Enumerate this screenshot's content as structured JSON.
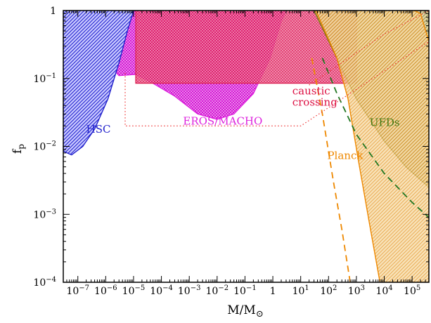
{
  "chart_data": {
    "type": "area",
    "xlabel": "M/M",
    "xlabel_symbol": "⊙",
    "ylabel": "f",
    "ylabel_sub": "p",
    "x_scale": "log",
    "y_scale": "log",
    "xlim": [
      3e-08,
      400000
    ],
    "ylim": [
      0.0001,
      1
    ],
    "x_ticks": [
      {
        "value": 1e-07,
        "base": "10",
        "exp": "−7"
      },
      {
        "value": 1e-06,
        "base": "10",
        "exp": "−6"
      },
      {
        "value": 1e-05,
        "base": "10",
        "exp": "−5"
      },
      {
        "value": 0.0001,
        "base": "10",
        "exp": "−4"
      },
      {
        "value": 0.001,
        "base": "10",
        "exp": "−3"
      },
      {
        "value": 0.01,
        "base": "10",
        "exp": "−2"
      },
      {
        "value": 0.1,
        "base": "10",
        "exp": "−1"
      },
      {
        "value": 1,
        "base": "1",
        "exp": ""
      },
      {
        "value": 10,
        "base": "10",
        "exp": "1"
      },
      {
        "value": 100,
        "base": "10",
        "exp": "2"
      },
      {
        "value": 1000,
        "base": "10",
        "exp": "3"
      },
      {
        "value": 10000,
        "base": "10",
        "exp": "4"
      },
      {
        "value": 100000,
        "base": "10",
        "exp": "5"
      }
    ],
    "y_ticks": [
      {
        "value": 0.0001,
        "base": "10",
        "exp": "−4"
      },
      {
        "value": 0.001,
        "base": "10",
        "exp": "−3"
      },
      {
        "value": 0.01,
        "base": "10",
        "exp": "−2"
      },
      {
        "value": 0.1,
        "base": "10",
        "exp": "−1"
      },
      {
        "value": 1,
        "base": "1",
        "exp": ""
      }
    ],
    "grid": false,
    "regions": [
      {
        "name": "EROS/MACHO",
        "color": "#dd22dd",
        "style": "crosshatch",
        "label": "EROS/MACHO",
        "label_at": [
          0.0006,
          0.021
        ],
        "boundary": [
          [
            3e-08,
            1
          ],
          [
            3e-08,
            0.7
          ],
          [
            2e-07,
            0.45
          ],
          [
            8e-07,
            0.2
          ],
          [
            3e-06,
            0.11
          ],
          [
            1.2e-05,
            0.115
          ],
          [
            5e-05,
            0.085
          ],
          [
            0.0003,
            0.055
          ],
          [
            0.002,
            0.03
          ],
          [
            0.01,
            0.025
          ],
          [
            0.04,
            0.03
          ],
          [
            0.2,
            0.06
          ],
          [
            0.8,
            0.2
          ],
          [
            2,
            0.7
          ],
          [
            3,
            1
          ]
        ]
      },
      {
        "name": "HSC",
        "color": "#2222cc",
        "style": "hatch",
        "label": "HSC",
        "label_at": [
          2e-07,
          0.016
        ],
        "boundary": [
          [
            3e-08,
            1
          ],
          [
            3e-08,
            0.0085
          ],
          [
            6e-08,
            0.0075
          ],
          [
            1.5e-07,
            0.01
          ],
          [
            4e-07,
            0.018
          ],
          [
            1.2e-06,
            0.05
          ],
          [
            3e-06,
            0.17
          ],
          [
            6e-06,
            0.5
          ],
          [
            1e-05,
            1
          ]
        ]
      },
      {
        "name": "caustic crossing",
        "color": "#dd2255",
        "style": "crosshatch",
        "label_lines": [
          "caustic",
          "crossing"
        ],
        "label_at": [
          5,
          0.058
        ],
        "boundary": [
          [
            1.2e-05,
            1
          ],
          [
            1.2e-05,
            0.085
          ],
          [
            1000.0,
            0.085
          ],
          [
            1000.0,
            1
          ]
        ]
      },
      {
        "name": "UFDs",
        "color": "#7a7a10",
        "style": "hatch",
        "label": "UFDs",
        "label_at": [
          3000,
          0.02
        ],
        "boundary": [
          [
            30,
            1
          ],
          [
            1000,
            0.05
          ],
          [
            10000,
            0.012
          ],
          [
            60000,
            0.005
          ],
          [
            400000,
            0.0025
          ],
          [
            400000,
            1
          ]
        ]
      },
      {
        "name": "Planck",
        "color": "#ee8800",
        "style": "hatch",
        "label": "Planck",
        "label_at": [
          90,
          0.0065
        ],
        "boundary": [
          [
            35,
            1
          ],
          [
            200,
            0.2
          ],
          [
            500,
            0.05
          ],
          [
            1200,
            0.006
          ],
          [
            3000,
            0.0007
          ],
          [
            7000,
            0.0001
          ],
          [
            400000,
            0.0001
          ],
          [
            400000,
            0.35
          ],
          [
            200000,
            0.9
          ],
          [
            120000,
            1
          ]
        ]
      }
    ],
    "lines": [
      {
        "name": "Planck dashed",
        "color": "#ee8800",
        "dash": true,
        "points": [
          [
            25,
            0.2
          ],
          [
            60,
            0.03
          ],
          [
            150,
            0.003
          ],
          [
            300,
            0.0006
          ],
          [
            600,
            0.0001
          ]
        ]
      },
      {
        "name": "UFDs dashed",
        "color": "#227722",
        "dash": true,
        "points": [
          [
            60,
            0.2
          ],
          [
            200,
            0.06
          ],
          [
            1000,
            0.015
          ],
          [
            10000,
            0.004
          ],
          [
            100000,
            0.0015
          ],
          [
            400000,
            0.0009
          ]
        ]
      },
      {
        "name": "EROS dotted",
        "color": "#ee3333",
        "dash": "dot",
        "points": [
          [
            5e-06,
            0.12
          ],
          [
            5e-06,
            0.02
          ],
          [
            10,
            0.02
          ],
          [
            400000,
            0.35
          ]
        ]
      },
      {
        "name": "caustic dotted",
        "color": "#ee3333",
        "dash": "dot",
        "points": [
          [
            20,
            0.08
          ],
          [
            10000,
            0.45
          ],
          [
            400000,
            1
          ]
        ]
      }
    ]
  }
}
